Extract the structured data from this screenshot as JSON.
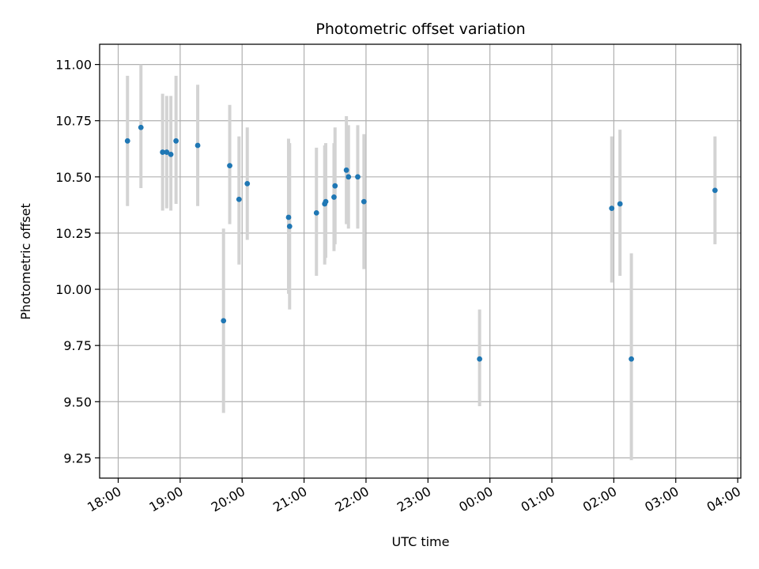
{
  "chart_data": {
    "type": "scatter",
    "title": "Photometric offset variation",
    "xlabel": "UTC time",
    "ylabel": "Photometric offset",
    "x_axis": "time (hours, UTC)",
    "xlim": [
      "17:42",
      "04:03"
    ],
    "ylim": [
      9.16,
      11.09
    ],
    "grid": true,
    "colors": {
      "points": "#1f77b4",
      "error_bars": "#d3d3d3",
      "grid": "#b0b0b0",
      "axes": "#000000"
    },
    "x_ticks": [
      "18:00",
      "19:00",
      "20:00",
      "21:00",
      "22:00",
      "23:00",
      "00:00",
      "01:00",
      "02:00",
      "03:00",
      "04:00"
    ],
    "y_ticks": [
      "9.25",
      "9.50",
      "9.75",
      "10.00",
      "10.25",
      "10.50",
      "10.75",
      "11.00"
    ],
    "series": [
      {
        "error_bars": "vertical",
        "points": [
          {
            "t": "18:09",
            "y": 10.66,
            "lo": 10.37,
            "hi": 10.95
          },
          {
            "t": "18:22",
            "y": 10.72,
            "lo": 10.45,
            "hi": 11.0
          },
          {
            "t": "18:43",
            "y": 10.61,
            "lo": 10.35,
            "hi": 10.87
          },
          {
            "t": "18:47",
            "y": 10.61,
            "lo": 10.36,
            "hi": 10.86
          },
          {
            "t": "18:51",
            "y": 10.6,
            "lo": 10.35,
            "hi": 10.86
          },
          {
            "t": "18:56",
            "y": 10.66,
            "lo": 10.38,
            "hi": 10.95
          },
          {
            "t": "19:17",
            "y": 10.64,
            "lo": 10.37,
            "hi": 10.91
          },
          {
            "t": "19:42",
            "y": 9.86,
            "lo": 9.45,
            "hi": 10.27
          },
          {
            "t": "19:48",
            "y": 10.55,
            "lo": 10.29,
            "hi": 10.82
          },
          {
            "t": "19:57",
            "y": 10.4,
            "lo": 10.11,
            "hi": 10.68
          },
          {
            "t": "20:05",
            "y": 10.47,
            "lo": 10.22,
            "hi": 10.72
          },
          {
            "t": "20:45",
            "y": 10.32,
            "lo": 9.98,
            "hi": 10.67
          },
          {
            "t": "20:46",
            "y": 10.28,
            "lo": 9.91,
            "hi": 10.65
          },
          {
            "t": "21:12",
            "y": 10.34,
            "lo": 10.06,
            "hi": 10.63
          },
          {
            "t": "21:20",
            "y": 10.38,
            "lo": 10.11,
            "hi": 10.64
          },
          {
            "t": "21:21",
            "y": 10.39,
            "lo": 10.14,
            "hi": 10.65
          },
          {
            "t": "21:29",
            "y": 10.41,
            "lo": 10.17,
            "hi": 10.65
          },
          {
            "t": "21:30",
            "y": 10.46,
            "lo": 10.2,
            "hi": 10.72
          },
          {
            "t": "21:41",
            "y": 10.53,
            "lo": 10.29,
            "hi": 10.77
          },
          {
            "t": "21:43",
            "y": 10.5,
            "lo": 10.27,
            "hi": 10.73
          },
          {
            "t": "21:52",
            "y": 10.5,
            "lo": 10.27,
            "hi": 10.73
          },
          {
            "t": "21:58",
            "y": 10.39,
            "lo": 10.09,
            "hi": 10.69
          },
          {
            "t": "23:50",
            "y": 9.69,
            "lo": 9.48,
            "hi": 9.91
          },
          {
            "t": "01:58",
            "y": 10.36,
            "lo": 10.03,
            "hi": 10.68
          },
          {
            "t": "02:06",
            "y": 10.38,
            "lo": 10.06,
            "hi": 10.71
          },
          {
            "t": "02:17",
            "y": 9.69,
            "lo": 9.24,
            "hi": 10.16
          },
          {
            "t": "03:38",
            "y": 10.44,
            "lo": 10.2,
            "hi": 10.68
          }
        ]
      }
    ]
  }
}
